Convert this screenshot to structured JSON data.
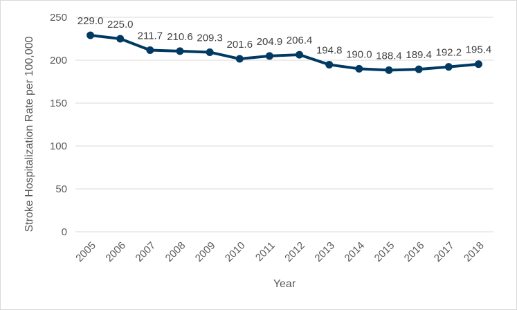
{
  "chart_data": {
    "type": "line",
    "title": "",
    "xlabel": "Year",
    "ylabel": "Stroke Hospitalization Rate per 100,000",
    "ylim": [
      0,
      250
    ],
    "yticks": [
      0,
      50,
      100,
      150,
      200,
      250
    ],
    "categories": [
      "2005",
      "2006",
      "2007",
      "2008",
      "2009",
      "2010",
      "2011",
      "2012",
      "2013",
      "2014",
      "2015",
      "2016",
      "2017",
      "2018"
    ],
    "series": [
      {
        "values": [
          229.0,
          225.0,
          211.7,
          210.6,
          209.3,
          201.6,
          204.9,
          206.4,
          194.8,
          190.0,
          188.4,
          189.4,
          192.2,
          195.4
        ],
        "labels": [
          "229.0",
          "225.0",
          "211.7",
          "210.6",
          "209.3",
          "201.6",
          "204.9",
          "206.4",
          "194.8",
          "190.0",
          "188.4",
          "189.4",
          "192.2",
          "195.4"
        ]
      }
    ],
    "grid": true,
    "legend": "none",
    "colors": {
      "line": "#003a63",
      "grid": "#d9d9d9"
    }
  }
}
